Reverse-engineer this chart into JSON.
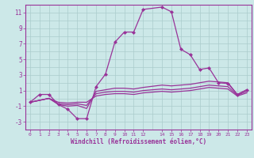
{
  "xlabel": "Windchill (Refroidissement éolien,°C)",
  "bg_color": "#cce8e8",
  "grid_color": "#aacccc",
  "line_color": "#993399",
  "xlim": [
    -0.5,
    23.5
  ],
  "ylim": [
    -4,
    12
  ],
  "yticks": [
    -3,
    -1,
    1,
    3,
    5,
    7,
    9,
    11
  ],
  "xticks": [
    0,
    1,
    2,
    3,
    4,
    5,
    6,
    7,
    8,
    9,
    10,
    11,
    12,
    14,
    15,
    16,
    17,
    18,
    19,
    20,
    21,
    22,
    23
  ],
  "line1_x": [
    0,
    1,
    2,
    3,
    4,
    5,
    6,
    7,
    8,
    9,
    10,
    11,
    12,
    14,
    15,
    16,
    17,
    18,
    19,
    20,
    21,
    22,
    23
  ],
  "line1_y": [
    -0.5,
    0.5,
    0.5,
    -0.8,
    -1.4,
    -2.6,
    -2.6,
    1.5,
    3.1,
    7.2,
    8.5,
    8.5,
    11.4,
    11.7,
    11.1,
    6.3,
    5.6,
    3.7,
    3.9,
    2.0,
    1.9,
    0.5,
    1.1
  ],
  "line2_x": [
    0,
    2,
    3,
    4,
    5,
    6,
    7,
    8,
    9,
    10,
    11,
    12,
    14,
    15,
    16,
    17,
    18,
    19,
    20,
    21,
    22,
    23
  ],
  "line2_y": [
    -0.5,
    0.0,
    -0.8,
    -1.0,
    -0.9,
    -1.3,
    0.9,
    1.1,
    1.3,
    1.3,
    1.2,
    1.4,
    1.7,
    1.6,
    1.7,
    1.8,
    2.0,
    2.2,
    2.1,
    2.0,
    0.5,
    1.1
  ],
  "line3_x": [
    0,
    2,
    3,
    4,
    5,
    6,
    7,
    8,
    9,
    10,
    11,
    12,
    14,
    15,
    16,
    17,
    18,
    19,
    20,
    21,
    22,
    23
  ],
  "line3_y": [
    -0.5,
    0.0,
    -0.7,
    -0.8,
    -0.7,
    -0.9,
    0.6,
    0.8,
    0.9,
    0.9,
    0.8,
    1.0,
    1.2,
    1.1,
    1.2,
    1.3,
    1.5,
    1.7,
    1.6,
    1.5,
    0.4,
    0.9
  ],
  "line4_x": [
    0,
    2,
    3,
    4,
    5,
    6,
    7,
    8,
    9,
    10,
    11,
    12,
    14,
    15,
    16,
    17,
    18,
    19,
    20,
    21,
    22,
    23
  ],
  "line4_y": [
    -0.5,
    0.0,
    -0.5,
    -0.6,
    -0.5,
    -0.5,
    0.3,
    0.5,
    0.6,
    0.6,
    0.5,
    0.7,
    0.9,
    0.8,
    0.9,
    1.0,
    1.2,
    1.4,
    1.3,
    1.2,
    0.3,
    0.7
  ],
  "figsize": [
    3.2,
    2.0
  ],
  "dpi": 100
}
